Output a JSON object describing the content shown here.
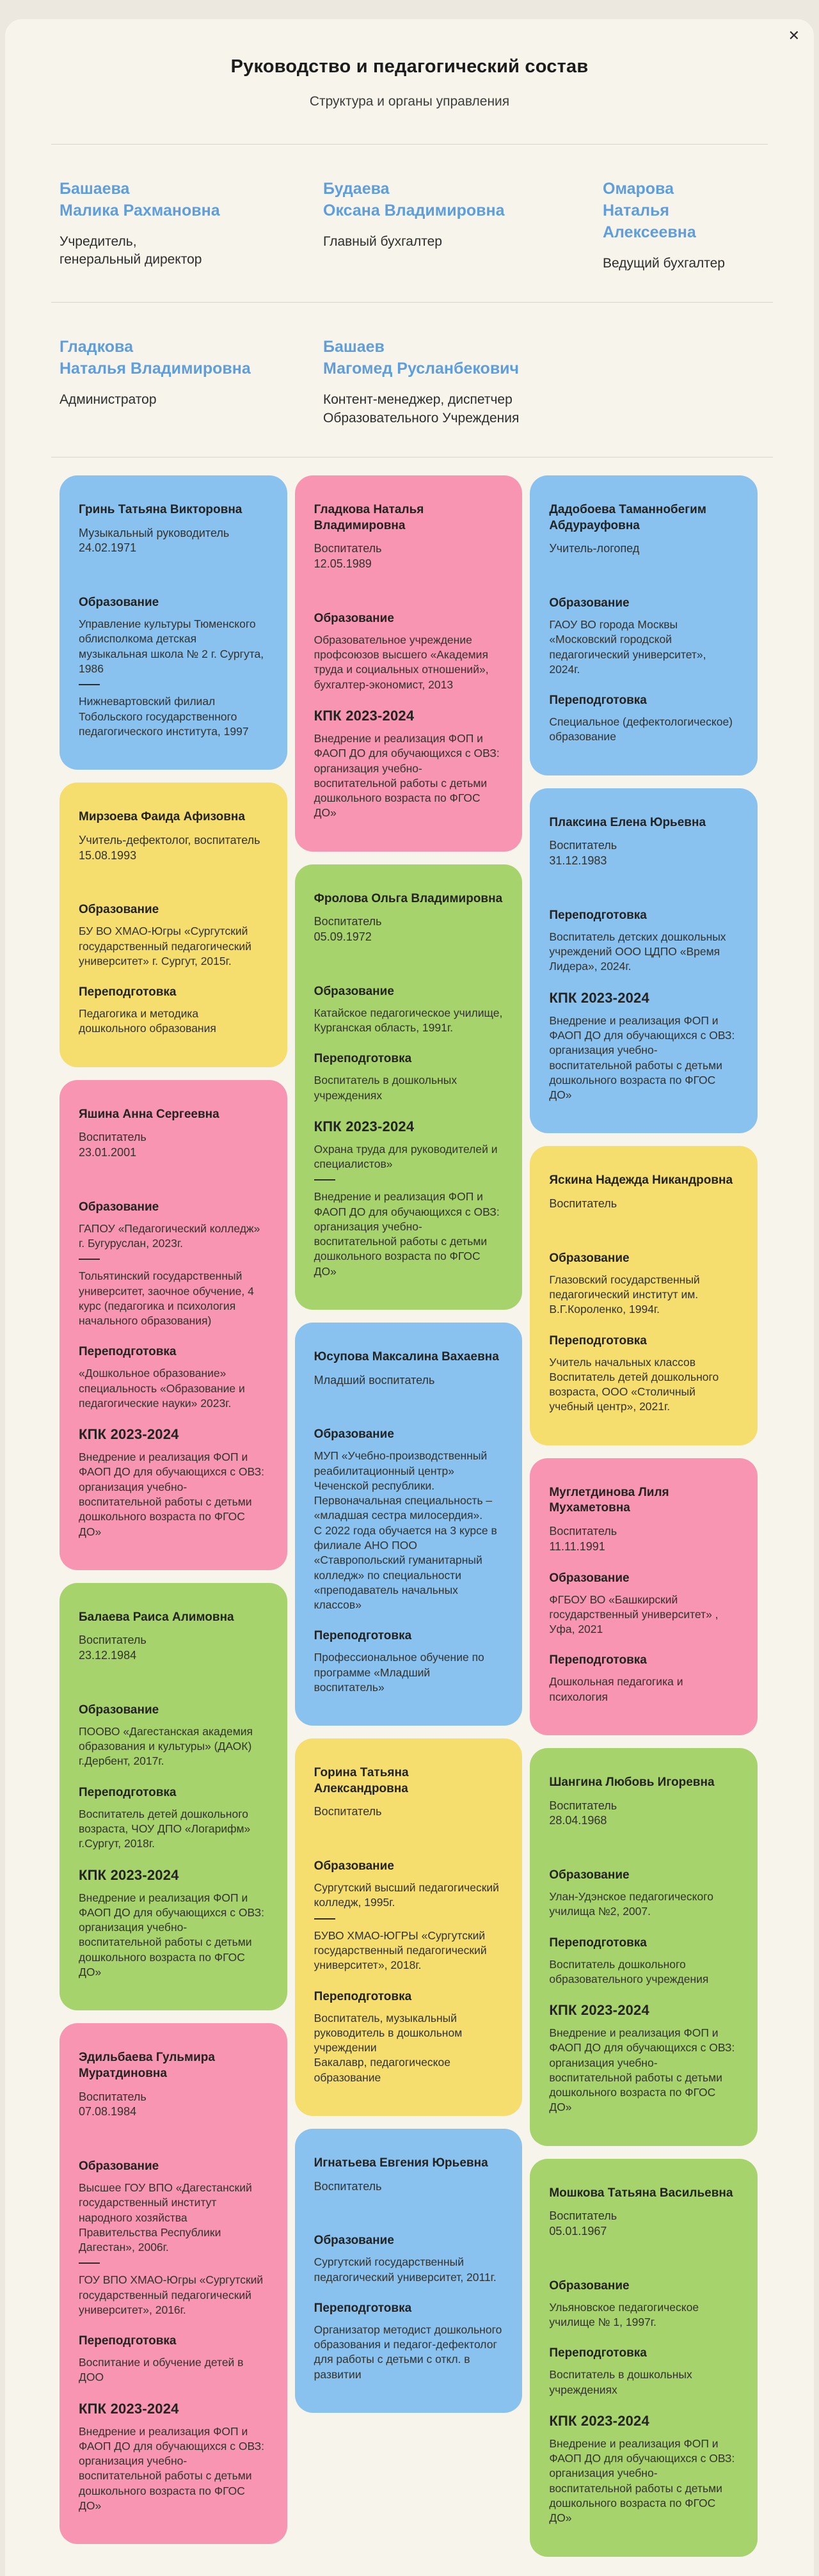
{
  "colors": {
    "page_background": "#F7F3EB",
    "outer_background": "#ECE8DF",
    "accent_text": "#5E9EDD",
    "title_text": "#1C1C1A"
  },
  "modal": {
    "close_label": "✕",
    "title": "Руководство и педагогический состав",
    "subtitle": "Структура и органы управления"
  },
  "management": {
    "rows": [
      [
        {
          "surname": "Башаева",
          "given": "Малика Рахмановна",
          "role": "Учредитель,\nгенеральный директор"
        },
        {
          "surname": "Будаева",
          "given": "Оксана Владимировна",
          "role": "Главный бухгалтер"
        },
        {
          "surname": "Омарова",
          "given": "Наталья Алексеевна",
          "role": "Ведущий бухгалтер"
        }
      ],
      [
        {
          "surname": "Гладкова",
          "given": "Наталья Владимировна",
          "role": "Администратор"
        },
        {
          "surname": "Башаев",
          "given": "Магомед Русланбекович",
          "role": "Контент-менеджер, диспетчер\nОбразовательного Учреждения"
        }
      ]
    ]
  },
  "staff": {
    "palette": {
      "blue": "#89C1EF",
      "pink": "#F795B2",
      "yellow": "#F5DE6E",
      "green": "#A7D36C"
    },
    "columns": [
      [
        {
          "color": "blue",
          "name": "Гринь Татьяна Викторовна",
          "role": "Музыкальный руководитель",
          "dob": "24.02.1971",
          "segments": [
            {
              "t": "sp"
            },
            {
              "t": "h",
              "v": "Образование"
            },
            {
              "t": "p",
              "v": "Управление культуры Тюменского облисполкома детская музыкальная школа № 2 г. Сургута, 1986"
            },
            {
              "t": "hr"
            },
            {
              "t": "p",
              "v": "Нижневартовский филиал Тобольского государственного педагогического института, 1997"
            }
          ]
        },
        {
          "color": "yellow",
          "name": "Мирзоева Фаида Афизовна",
          "role": "Учитель-дефектолог, воспитатель",
          "dob": "15.08.1993",
          "segments": [
            {
              "t": "sp"
            },
            {
              "t": "h",
              "v": "Образование"
            },
            {
              "t": "p",
              "v": "БУ ВО ХМАО-Югры «Сургутский государственный педагогический университет» г. Сургут, 2015г."
            },
            {
              "t": "h",
              "v": "Переподготовка"
            },
            {
              "t": "p",
              "v": "Педагогика и методика дошкольного образования"
            }
          ]
        },
        {
          "color": "pink",
          "name": "Яшина Анна Сергеевна",
          "role": "Воспитатель",
          "dob": "23.01.2001",
          "segments": [
            {
              "t": "sp"
            },
            {
              "t": "h",
              "v": "Образование"
            },
            {
              "t": "p",
              "v": "ГАПОУ «Педагогический колледж» г. Бугуруслан, 2023г."
            },
            {
              "t": "hr"
            },
            {
              "t": "p",
              "v": "Тольятинский государственный университет, заочное обучение, 4 курс (педагогика и психология начального образования)"
            },
            {
              "t": "h",
              "v": "Переподготовка"
            },
            {
              "t": "p",
              "v": "«Дошкольное образование» специальность «Образование и педагогические науки» 2023г."
            },
            {
              "t": "k",
              "v": "КПК 2023-2024"
            },
            {
              "t": "p",
              "v": "Внедрение и реализация ФОП и ФАОП ДО для обучающихся с ОВЗ: организация учебно-воспитательной работы с детьми дошкольного возраста по ФГОС ДО»"
            }
          ]
        },
        {
          "color": "green",
          "name": "Балаева Раиса Алимовна",
          "role": "Воспитатель",
          "dob": "23.12.1984",
          "segments": [
            {
              "t": "sp"
            },
            {
              "t": "h",
              "v": "Образование"
            },
            {
              "t": "p",
              "v": "ПООВО «Дагестанская академия образования и культуры» (ДАОК) г.Дербент, 2017г."
            },
            {
              "t": "h",
              "v": "Переподготовка"
            },
            {
              "t": "p",
              "v": "Воспитатель детей дошкольного возраста, ЧОУ ДПО «Логарифм» г.Сургут, 2018г."
            },
            {
              "t": "k",
              "v": "КПК 2023-2024"
            },
            {
              "t": "p",
              "v": "Внедрение и реализация ФОП и ФАОП ДО для обучающихся с ОВЗ: организация учебно-воспитательной работы с детьми дошкольного возраста по ФГОС ДО»"
            }
          ]
        },
        {
          "color": "pink",
          "name": "Эдильбаева Гульмира Муратдиновна",
          "role": "Воспитатель",
          "dob": "07.08.1984",
          "segments": [
            {
              "t": "sp"
            },
            {
              "t": "h",
              "v": "Образование"
            },
            {
              "t": "p",
              "v": "Высшее ГОУ ВПО «Дагестанский государственный институт народного хозяйства Правительства Республики Дагестан», 2006г."
            },
            {
              "t": "hr"
            },
            {
              "t": "p",
              "v": "ГОУ ВПО ХМАО-Югры «Сургутский государственный педагогический университет», 2016г."
            },
            {
              "t": "h",
              "v": "Переподготовка"
            },
            {
              "t": "p",
              "v": "Воспитание и обучение детей в ДОО"
            },
            {
              "t": "k",
              "v": "КПК 2023-2024"
            },
            {
              "t": "p",
              "v": "Внедрение и реализация ФОП и ФАОП ДО для обучающихся с ОВЗ: организация учебно-воспитательной работы с детьми дошкольного возраста по ФГОС ДО»"
            }
          ]
        }
      ],
      [
        {
          "color": "pink",
          "name": "Гладкова Наталья Владимировна",
          "role": "Воспитатель",
          "dob": "12.05.1989",
          "segments": [
            {
              "t": "sp"
            },
            {
              "t": "h",
              "v": "Образование"
            },
            {
              "t": "p",
              "v": "Образовательное учреждение профсоюзов высшего «Академия труда и социальных отношений», бухгалтер-экономист, 2013"
            },
            {
              "t": "k",
              "v": "КПК 2023-2024"
            },
            {
              "t": "p",
              "v": "Внедрение и реализация ФОП и ФАОП ДО для обучающихся с ОВЗ: организация учебно-воспитательной работы с детьми дошкольного возраста по ФГОС ДО»"
            }
          ]
        },
        {
          "color": "green",
          "name": "Фролова Ольга Владимировна",
          "role": "Воспитатель",
          "dob": "05.09.1972",
          "segments": [
            {
              "t": "sp"
            },
            {
              "t": "h",
              "v": "Образование"
            },
            {
              "t": "p",
              "v": "Катайское педагогическое училище, Курганская область, 1991г."
            },
            {
              "t": "h",
              "v": "Переподготовка"
            },
            {
              "t": "p",
              "v": "Воспитатель в дошкольных учреждениях"
            },
            {
              "t": "k",
              "v": "КПК 2023-2024"
            },
            {
              "t": "p",
              "v": "Охрана труда для руководителей и специалистов»"
            },
            {
              "t": "hr"
            },
            {
              "t": "p",
              "v": "Внедрение и реализация ФОП и ФАОП ДО для обучающихся с ОВЗ: организация учебно-воспитательной работы с детьми дошкольного возраста по ФГОС ДО»"
            }
          ]
        },
        {
          "color": "blue",
          "name": "Юсупова Максалина Вахаевна",
          "role": "Младший воспитатель",
          "dob": "",
          "segments": [
            {
              "t": "sp"
            },
            {
              "t": "h",
              "v": "Образование"
            },
            {
              "t": "p",
              "v": "МУП «Учебно-производственный реабилитационный центр» Чеченской республики. Первоначальная специальность – «младшая сестра милосердия».\nС 2022 года обучается на 3 курсе в филиале АНО ПОО «Ставропольский гуманитарный колледж» по специальности «преподаватель начальных классов»"
            },
            {
              "t": "h",
              "v": "Переподготовка"
            },
            {
              "t": "p",
              "v": "Профессиональное обучение по программе «Младший воспитатель»"
            }
          ]
        },
        {
          "color": "yellow",
          "name": "Горина Татьяна Александровна",
          "role": "Воспитатель",
          "dob": "",
          "segments": [
            {
              "t": "sp"
            },
            {
              "t": "h",
              "v": "Образование"
            },
            {
              "t": "p",
              "v": "Сургутский высший педагогический колледж, 1995г."
            },
            {
              "t": "hr"
            },
            {
              "t": "p",
              "v": "БУВО ХМАО-ЮГРЫ «Сургутский государственный педагогический университет», 2018г."
            },
            {
              "t": "h",
              "v": "Переподготовка"
            },
            {
              "t": "p",
              "v": "Воспитатель, музыкальный руководитель в дошкольном учреждении\nБакалавр, педагогическое образование"
            }
          ]
        },
        {
          "color": "blue",
          "name": "Игнатьева Евгения Юрьевна",
          "role": "Воспитатель",
          "dob": "",
          "segments": [
            {
              "t": "sp"
            },
            {
              "t": "h",
              "v": "Образование"
            },
            {
              "t": "p",
              "v": "Сургутский государственный педагогический университет, 2011г."
            },
            {
              "t": "h",
              "v": "Переподготовка"
            },
            {
              "t": "p",
              "v": "Организатор методист дошкольного образования и педагог-дефектолог для работы с детьми с откл. в развитии"
            }
          ]
        }
      ],
      [
        {
          "color": "blue",
          "name": "Дадобоева Таманнобегим Абдурауфовна",
          "role": "Учитель-логопед",
          "dob": "",
          "segments": [
            {
              "t": "sp"
            },
            {
              "t": "h",
              "v": "Образование"
            },
            {
              "t": "p",
              "v": "ГАОУ ВО города Москвы «Московский городской педагогический университет», 2024г."
            },
            {
              "t": "h",
              "v": "Переподготовка"
            },
            {
              "t": "p",
              "v": "Специальное (дефектологическое) образование"
            }
          ]
        },
        {
          "color": "blue",
          "name": "Плаксина Елена Юрьевна",
          "role": "Воспитатель",
          "dob": "31.12.1983",
          "segments": [
            {
              "t": "sp"
            },
            {
              "t": "h",
              "v": "Переподготовка"
            },
            {
              "t": "p",
              "v": "Воспитатель детских дошкольных учреждений ООО ЦДПО «Время Лидера», 2024г."
            },
            {
              "t": "k",
              "v": "КПК 2023-2024"
            },
            {
              "t": "p",
              "v": "Внедрение и реализация ФОП и ФАОП ДО для обучающихся с ОВЗ: организация учебно-воспитательной работы с детьми дошкольного возраста по ФГОС ДО»"
            }
          ]
        },
        {
          "color": "yellow",
          "name": "Яскина Надежда Никандровна",
          "role": "Воспитатель",
          "dob": "",
          "segments": [
            {
              "t": "sp"
            },
            {
              "t": "h",
              "v": "Образование"
            },
            {
              "t": "p",
              "v": "Глазовский государственный педагогический институт им. В.Г.Короленко, 1994г."
            },
            {
              "t": "h",
              "v": "Переподготовка"
            },
            {
              "t": "p",
              "v": "Учитель начальных классов\nВоспитатель детей дошкольного возраста, ООО «Столичный учебный центр», 2021г."
            }
          ]
        },
        {
          "color": "pink",
          "name": "Муглетдинова Лиля Мухаметовна",
          "role": "Воспитатель",
          "dob": "11.11.1991",
          "segments": [
            {
              "t": "h",
              "v": "Образование"
            },
            {
              "t": "p",
              "v": "ФГБОУ ВО «Башкирский государственный университет» , Уфа, 2021"
            },
            {
              "t": "h",
              "v": "Переподготовка"
            },
            {
              "t": "p",
              "v": "Дошкольная педагогика и психология"
            }
          ]
        },
        {
          "color": "green",
          "name": "Шангина Любовь Игоревна",
          "role": "Воспитатель",
          "dob": "28.04.1968",
          "segments": [
            {
              "t": "sp"
            },
            {
              "t": "h",
              "v": "Образование"
            },
            {
              "t": "p",
              "v": "Улан-Удэнское педагогического училища №2, 2007."
            },
            {
              "t": "h",
              "v": "Переподготовка"
            },
            {
              "t": "p",
              "v": "Воспитатель дошкольного образовательного учреждения"
            },
            {
              "t": "k",
              "v": "КПК 2023-2024"
            },
            {
              "t": "p",
              "v": "Внедрение и реализация ФОП и ФАОП ДО для обучающихся с ОВЗ: организация учебно-воспитательной работы с детьми дошкольного возраста по ФГОС ДО»"
            }
          ]
        },
        {
          "color": "green",
          "name": "Мошкова Татьяна Васильевна",
          "role": "Воспитатель",
          "dob": "05.01.1967",
          "segments": [
            {
              "t": "sp"
            },
            {
              "t": "h",
              "v": "Образование"
            },
            {
              "t": "p",
              "v": "Ульяновское педагогическое училище № 1, 1997г."
            },
            {
              "t": "h",
              "v": "Переподготовка"
            },
            {
              "t": "p",
              "v": "Воспитатель в дошкольных учреждениях"
            },
            {
              "t": "k",
              "v": "КПК 2023-2024"
            },
            {
              "t": "p",
              "v": "Внедрение и реализация ФОП и ФАОП ДО для обучающихся с ОВЗ: организация учебно-воспитательной работы с детьми дошкольного возраста по ФГОС ДО»"
            }
          ]
        }
      ]
    ]
  }
}
